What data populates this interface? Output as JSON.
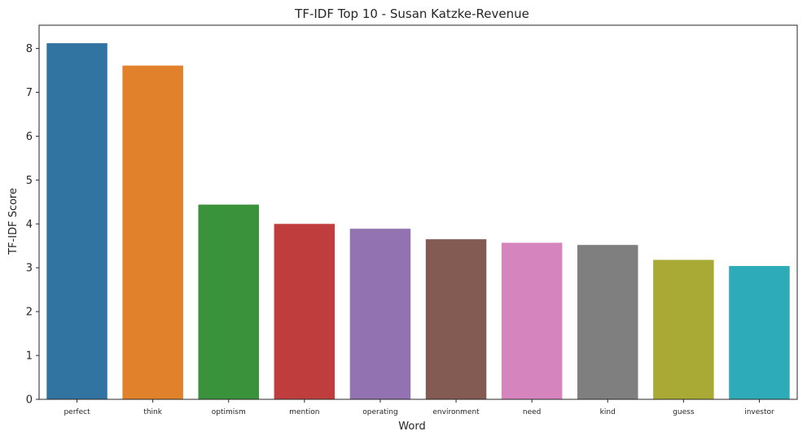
{
  "chart_data": {
    "type": "bar",
    "title": "TF-IDF Top 10 - Susan Katzke-Revenue",
    "xlabel": "Word",
    "ylabel": "TF-IDF Score",
    "categories": [
      "perfect",
      "think",
      "optimism",
      "mention",
      "operating",
      "environment",
      "need",
      "kind",
      "guess",
      "investor"
    ],
    "values": [
      8.12,
      7.61,
      4.44,
      4.0,
      3.89,
      3.65,
      3.57,
      3.52,
      3.18,
      3.04
    ],
    "colors": [
      "#3274a1",
      "#e1812c",
      "#3a923a",
      "#c03d3e",
      "#9372b2",
      "#845b53",
      "#d684bd",
      "#7f7f7f",
      "#a9aa35",
      "#2eabb8"
    ],
    "ylim": [
      0,
      8.53
    ],
    "yticks": [
      0,
      1,
      2,
      3,
      4,
      5,
      6,
      7,
      8
    ],
    "grid": false,
    "legend": false
  }
}
